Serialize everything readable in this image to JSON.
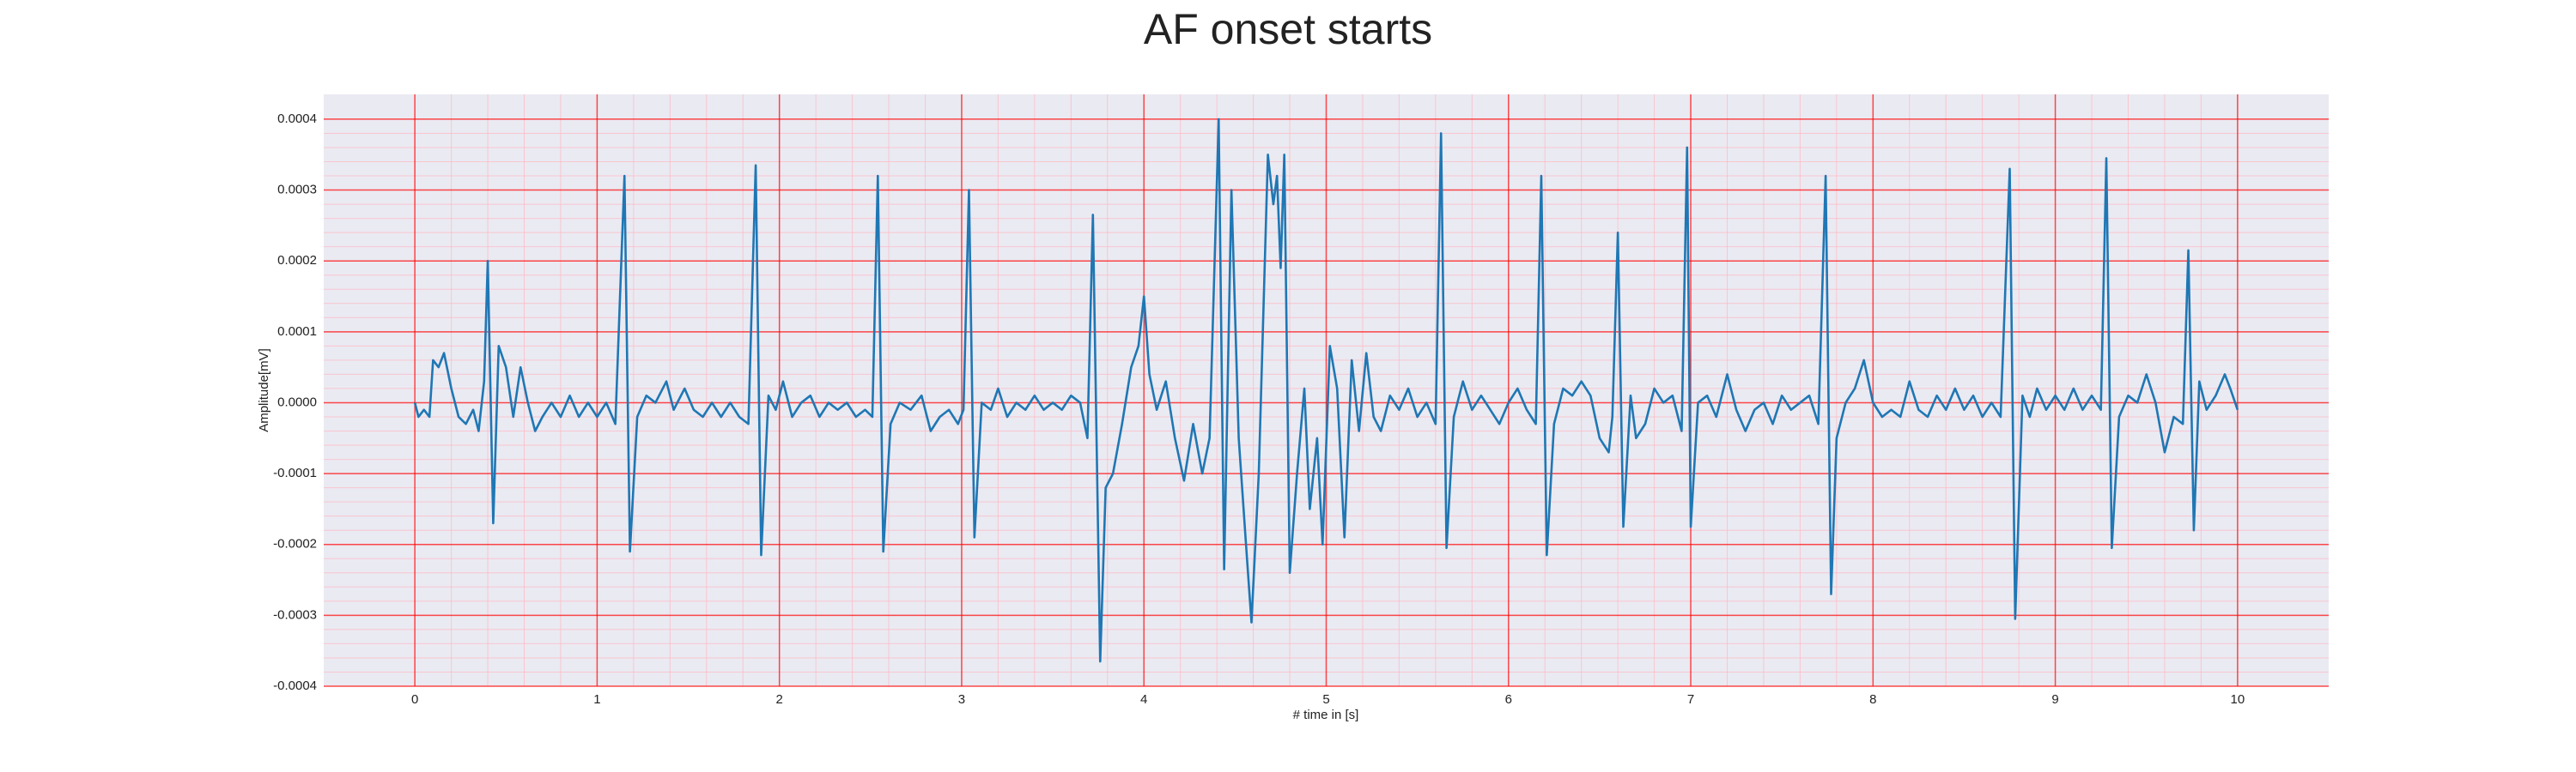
{
  "chart_data": {
    "type": "line",
    "title": "AF onset starts",
    "xlabel": "# time in [s]",
    "ylabel": "Amplitude[mV]",
    "x": [
      0,
      0.02,
      0.05,
      0.08,
      0.1,
      0.13,
      0.16,
      0.2,
      0.24,
      0.28,
      0.32,
      0.35,
      0.38,
      0.4,
      0.43,
      0.46,
      0.5,
      0.54,
      0.58,
      0.62,
      0.66,
      0.7,
      0.75,
      0.8,
      0.85,
      0.9,
      0.95,
      1.0,
      1.05,
      1.1,
      1.15,
      1.18,
      1.22,
      1.27,
      1.32,
      1.38,
      1.42,
      1.48,
      1.53,
      1.58,
      1.63,
      1.68,
      1.73,
      1.78,
      1.83,
      1.87,
      1.9,
      1.94,
      1.98,
      2.02,
      2.07,
      2.12,
      2.17,
      2.22,
      2.27,
      2.32,
      2.37,
      2.42,
      2.47,
      2.51,
      2.54,
      2.57,
      2.61,
      2.66,
      2.72,
      2.78,
      2.83,
      2.88,
      2.93,
      2.98,
      3.01,
      3.04,
      3.07,
      3.11,
      3.16,
      3.2,
      3.25,
      3.3,
      3.35,
      3.4,
      3.45,
      3.5,
      3.55,
      3.6,
      3.65,
      3.69,
      3.72,
      3.76,
      3.79,
      3.83,
      3.88,
      3.93,
      3.97,
      4.0,
      4.03,
      4.07,
      4.12,
      4.17,
      4.22,
      4.27,
      4.32,
      4.36,
      4.41,
      4.44,
      4.48,
      4.52,
      4.56,
      4.59,
      4.63,
      4.68,
      4.71,
      4.73,
      4.75,
      4.77,
      4.8,
      4.84,
      4.88,
      4.91,
      4.95,
      4.98,
      5.02,
      5.06,
      5.1,
      5.14,
      5.18,
      5.22,
      5.26,
      5.3,
      5.35,
      5.4,
      5.45,
      5.5,
      5.55,
      5.6,
      5.63,
      5.66,
      5.7,
      5.75,
      5.8,
      5.85,
      5.9,
      5.95,
      6.0,
      6.05,
      6.1,
      6.15,
      6.18,
      6.21,
      6.25,
      6.3,
      6.35,
      6.4,
      6.45,
      6.5,
      6.55,
      6.57,
      6.6,
      6.63,
      6.67,
      6.7,
      6.75,
      6.8,
      6.85,
      6.9,
      6.95,
      6.98,
      7.0,
      7.04,
      7.09,
      7.14,
      7.2,
      7.25,
      7.3,
      7.35,
      7.4,
      7.45,
      7.5,
      7.55,
      7.6,
      7.65,
      7.7,
      7.74,
      7.77,
      7.8,
      7.85,
      7.9,
      7.95,
      8.0,
      8.05,
      8.1,
      8.15,
      8.2,
      8.25,
      8.3,
      8.35,
      8.4,
      8.45,
      8.5,
      8.55,
      8.6,
      8.65,
      8.7,
      8.75,
      8.78,
      8.82,
      8.86,
      8.9,
      8.95,
      9.0,
      9.05,
      9.1,
      9.15,
      9.2,
      9.25,
      9.28,
      9.31,
      9.35,
      9.4,
      9.45,
      9.5,
      9.55,
      9.6,
      9.65,
      9.7,
      9.73,
      9.76,
      9.79,
      9.83,
      9.88,
      9.93,
      9.96,
      10.0
    ],
    "series": [
      {
        "name": "Amplitude[mV]",
        "color": "#1f77b4",
        "values": [
          0,
          -2e-05,
          -1e-05,
          -2e-05,
          6e-05,
          5e-05,
          7e-05,
          2e-05,
          -2e-05,
          -3e-05,
          -1e-05,
          -4e-05,
          3e-05,
          0.0002,
          -0.00017,
          8e-05,
          5e-05,
          -2e-05,
          5e-05,
          0,
          -4e-05,
          -2e-05,
          0,
          -2e-05,
          1e-05,
          -2e-05,
          0,
          -2e-05,
          0,
          -3e-05,
          0.00032,
          -0.00021,
          -2e-05,
          1e-05,
          0,
          3e-05,
          -1e-05,
          2e-05,
          -1e-05,
          -2e-05,
          0,
          -2e-05,
          0,
          -2e-05,
          -3e-05,
          0.000335,
          -0.000215,
          1e-05,
          -1e-05,
          3e-05,
          -2e-05,
          0,
          1e-05,
          -2e-05,
          0,
          -1e-05,
          0,
          -2e-05,
          -1e-05,
          -2e-05,
          0.00032,
          -0.00021,
          -3e-05,
          0,
          -1e-05,
          1e-05,
          -4e-05,
          -2e-05,
          -1e-05,
          -3e-05,
          -1e-05,
          0.0003,
          -0.00019,
          0,
          -1e-05,
          2e-05,
          -2e-05,
          0,
          -1e-05,
          1e-05,
          -1e-05,
          0,
          -1e-05,
          1e-05,
          0,
          -5e-05,
          0.000265,
          -0.000365,
          -0.00012,
          -0.0001,
          -3e-05,
          5e-05,
          8e-05,
          0.00015,
          4e-05,
          -1e-05,
          3e-05,
          -5e-05,
          -0.00011,
          -3e-05,
          -0.0001,
          -5e-05,
          0.0004,
          -0.000235,
          0.0003,
          -5e-05,
          -0.0002,
          -0.00031,
          -0.0001,
          0.00035,
          0.00028,
          0.00032,
          0.00019,
          0.00035,
          -0.00024,
          -0.0001,
          2e-05,
          -0.00015,
          -5e-05,
          -0.0002,
          8e-05,
          2e-05,
          -0.00019,
          6e-05,
          -4e-05,
          7e-05,
          -2e-05,
          -4e-05,
          1e-05,
          -1e-05,
          2e-05,
          -2e-05,
          0,
          -3e-05,
          0.00038,
          -0.000205,
          -2e-05,
          3e-05,
          -1e-05,
          1e-05,
          -1e-05,
          -3e-05,
          0,
          2e-05,
          -1e-05,
          -3e-05,
          0.00032,
          -0.000215,
          -3e-05,
          2e-05,
          1e-05,
          3e-05,
          1e-05,
          -5e-05,
          -7e-05,
          -2e-05,
          0.00024,
          -0.000175,
          1e-05,
          -5e-05,
          -3e-05,
          2e-05,
          0,
          1e-05,
          -4e-05,
          0.00036,
          -0.000175,
          0,
          1e-05,
          -2e-05,
          4e-05,
          -1e-05,
          -4e-05,
          -1e-05,
          0,
          -3e-05,
          1e-05,
          -1e-05,
          0,
          1e-05,
          -3e-05,
          0.00032,
          -0.00027,
          -5e-05,
          0,
          2e-05,
          6e-05,
          0,
          -2e-05,
          -1e-05,
          -2e-05,
          3e-05,
          -1e-05,
          -2e-05,
          1e-05,
          -1e-05,
          2e-05,
          -1e-05,
          1e-05,
          -2e-05,
          0,
          -2e-05,
          0.00033,
          -0.000305,
          1e-05,
          -2e-05,
          2e-05,
          -1e-05,
          1e-05,
          -1e-05,
          2e-05,
          -1e-05,
          1e-05,
          -1e-05,
          0.000345,
          -0.000205,
          -2e-05,
          1e-05,
          0,
          4e-05,
          0,
          -7e-05,
          -2e-05,
          -3e-05,
          0.000215,
          -0.00018,
          3e-05,
          -1e-05,
          1e-05,
          4e-05,
          2e-05,
          -1e-05
        ]
      }
    ],
    "xlim": [
      -0.5,
      10.5
    ],
    "xticks": [
      0,
      1,
      2,
      3,
      4,
      5,
      6,
      7,
      8,
      9,
      10
    ],
    "ylim": [
      -0.0004,
      0.000435
    ],
    "yticks": [
      -0.0004,
      -0.0003,
      -0.0002,
      -0.0001,
      {
        "value": 0,
        "label": "0.0000"
      },
      0.0001,
      0.0002,
      0.0003,
      0.0004
    ],
    "grid": true,
    "minor_grid": true
  }
}
